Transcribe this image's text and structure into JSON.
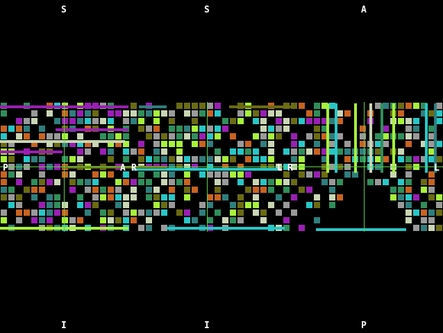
{
  "game": {
    "top_labels": [
      "S",
      "S",
      "A"
    ],
    "bottom_labels": [
      "I",
      "I",
      "P"
    ],
    "row_labels": {
      "left": "P",
      "mid1": "A",
      "mid2": "R",
      "right1": "L",
      "right2": "R",
      "far_right": "L"
    }
  },
  "colors": {
    "background": "#000000",
    "cyan": "#27c7c7",
    "lime": "#a6f23a",
    "magenta": "#9b1fb5",
    "olive": "#6b6b12",
    "orange": "#c8631f",
    "gray": "#9a9a9a",
    "green": "#2f8f5a",
    "pale": "#c9d6b4",
    "teal": "#2f7e7e",
    "guide_line": "#5fd14a"
  }
}
